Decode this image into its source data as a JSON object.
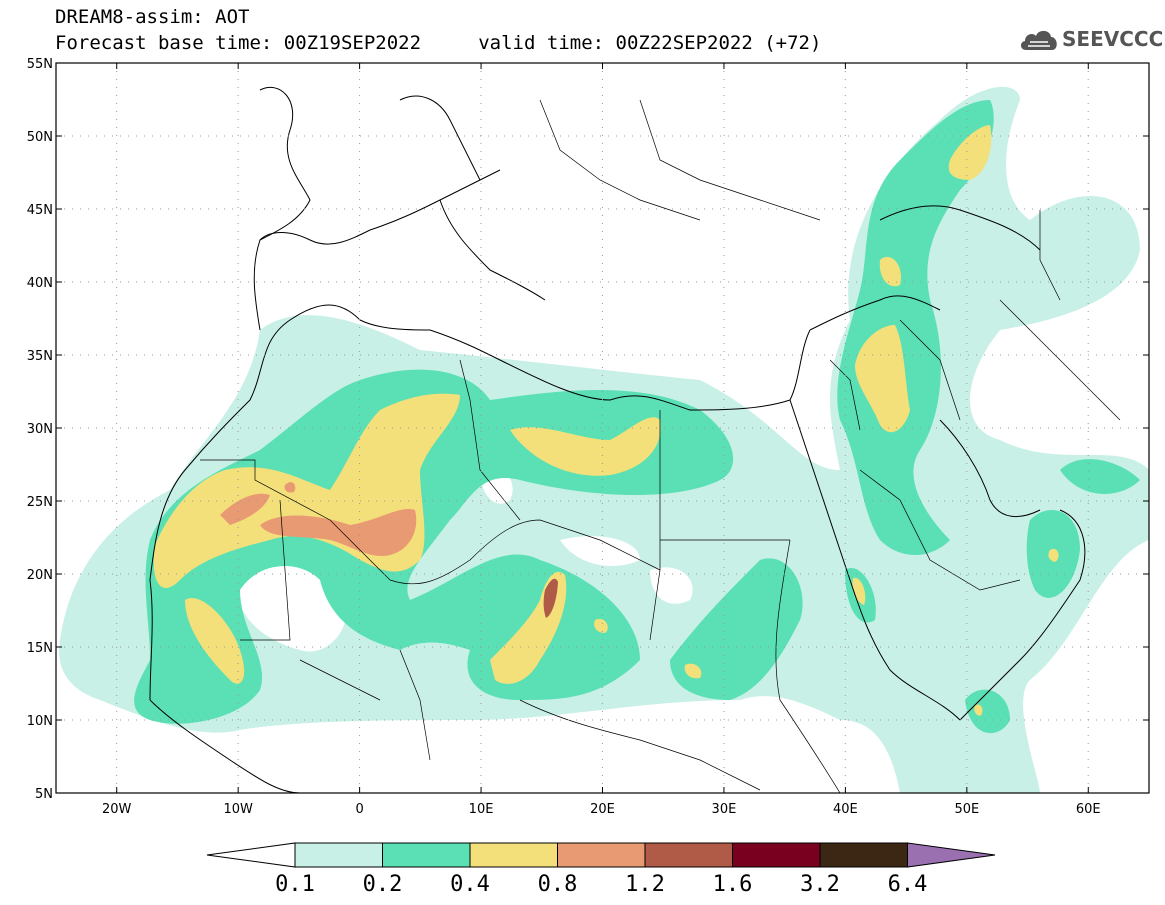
{
  "title": {
    "line1": "DREAM8-assim: AOT",
    "line2": "Forecast base time: 00Z19SEP2022     valid time: 00Z22SEP2022 (+72)"
  },
  "logo": {
    "text": "SEEVCCC",
    "icon": "cloud-icon"
  },
  "map": {
    "lon_range": [
      -25,
      65
    ],
    "lat_range": [
      5,
      55
    ],
    "lat_ticks": [
      "5N",
      "10N",
      "15N",
      "20N",
      "25N",
      "30N",
      "35N",
      "40N",
      "45N",
      "50N",
      "55N"
    ],
    "lon_ticks": [
      "20W",
      "10W",
      "0",
      "10E",
      "20E",
      "30E",
      "40E",
      "50E",
      "60E"
    ],
    "grid": "dotted"
  },
  "colorbar": {
    "labels": [
      "0.1",
      "0.2",
      "0.4",
      "0.8",
      "1.2",
      "1.6",
      "3.2",
      "6.4"
    ],
    "colors": [
      "#c8f0e6",
      "#5ae0b4",
      "#f4e07a",
      "#e89a72",
      "#b05a48",
      "#7a0020",
      "#3c2614",
      "#9a70b0"
    ]
  }
}
